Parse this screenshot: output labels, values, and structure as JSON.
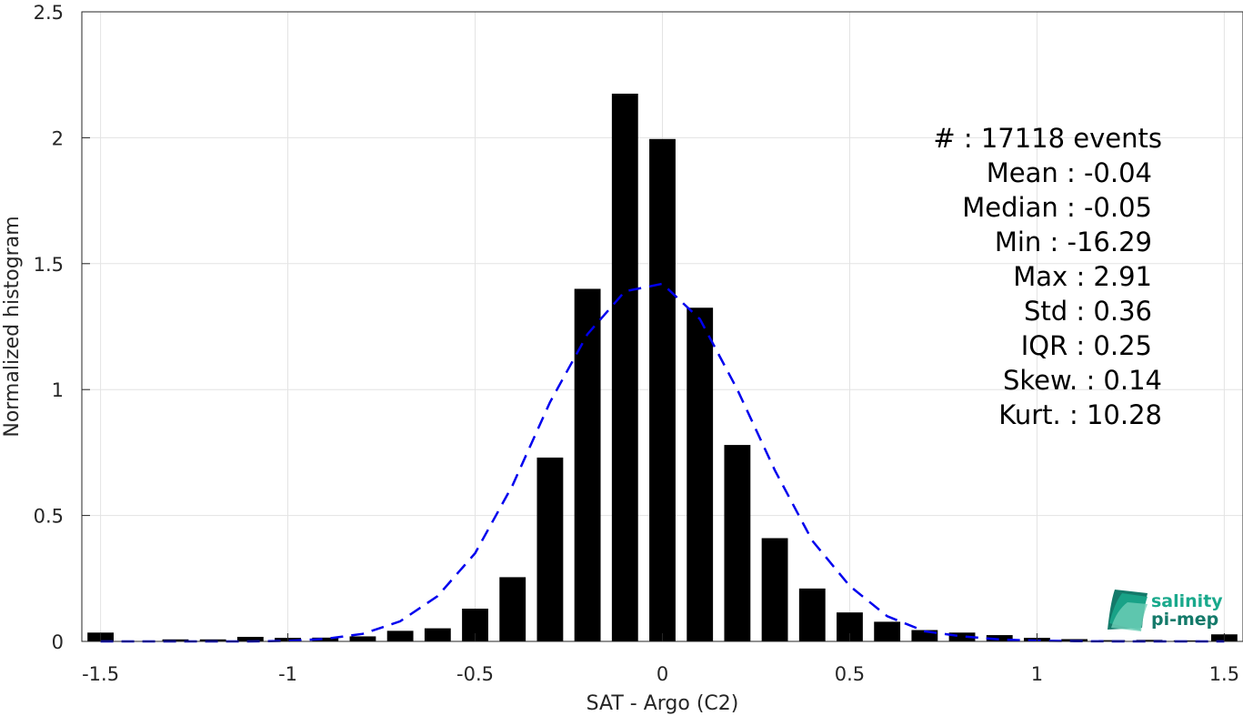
{
  "chart_data": {
    "type": "bar",
    "xlabel": "SAT - Argo (C2)",
    "ylabel": "Normalized histogram",
    "xlim": [
      -1.55,
      1.55
    ],
    "ylim": [
      0,
      2.5
    ],
    "xticks": [
      -1.5,
      -1,
      -0.5,
      0,
      0.5,
      1,
      1.5
    ],
    "xtick_labels": [
      "-1.5",
      "-1",
      "-0.5",
      "0",
      "0.5",
      "1",
      "1.5"
    ],
    "yticks": [
      0,
      0.5,
      1,
      1.5,
      2,
      2.5
    ],
    "ytick_labels": [
      "0",
      "0.5",
      "1",
      "1.5",
      "2",
      "2.5"
    ],
    "grid": true,
    "bar_width": 0.07,
    "bars": {
      "x": [
        -1.5,
        -1.4,
        -1.3,
        -1.2,
        -1.1,
        -1.0,
        -0.9,
        -0.8,
        -0.7,
        -0.6,
        -0.5,
        -0.4,
        -0.3,
        -0.2,
        -0.1,
        0.0,
        0.1,
        0.2,
        0.3,
        0.4,
        0.5,
        0.6,
        0.7,
        0.8,
        0.9,
        1.0,
        1.1,
        1.2,
        1.3,
        1.4,
        1.5
      ],
      "values": [
        0.035,
        0.0,
        0.008,
        0.008,
        0.018,
        0.014,
        0.015,
        0.02,
        0.042,
        0.052,
        0.13,
        0.255,
        0.73,
        1.4,
        2.175,
        1.995,
        1.325,
        0.78,
        0.41,
        0.21,
        0.115,
        0.078,
        0.045,
        0.035,
        0.025,
        0.014,
        0.009,
        0.005,
        0.006,
        0.004,
        0.028
      ],
      "color": "#000000"
    },
    "fit_curve": {
      "style": "dashed",
      "color": "#0000ee",
      "x": [
        -1.5,
        -1.4,
        -1.3,
        -1.2,
        -1.1,
        -1.0,
        -0.9,
        -0.8,
        -0.7,
        -0.6,
        -0.5,
        -0.4,
        -0.3,
        -0.2,
        -0.1,
        0.0,
        0.1,
        0.2,
        0.3,
        0.4,
        0.5,
        0.6,
        0.7,
        0.8,
        0.9,
        1.0,
        1.1,
        1.2,
        1.3,
        1.4,
        1.5
      ],
      "values": [
        0.0,
        0.0,
        0.0,
        0.0,
        0.0,
        0.002,
        0.01,
        0.03,
        0.08,
        0.18,
        0.35,
        0.62,
        0.95,
        1.22,
        1.39,
        1.42,
        1.28,
        1.0,
        0.68,
        0.4,
        0.22,
        0.1,
        0.04,
        0.02,
        0.008,
        0.003,
        0.001,
        0.0,
        0.0,
        0.0,
        0.0
      ]
    },
    "annotations": [
      "#  : 17118 events",
      "Mean : -0.04",
      "Median : -0.05",
      "Min : -16.29",
      "Max : 2.91",
      "Std : 0.36",
      "IQR : 0.25",
      "Skew. : 0.14",
      "Kurt. : 10.28"
    ]
  },
  "logo": {
    "line1": "salinity",
    "line2": "pi-mep",
    "color_light": "#1aa98c",
    "color_dark": "#147a6a"
  }
}
